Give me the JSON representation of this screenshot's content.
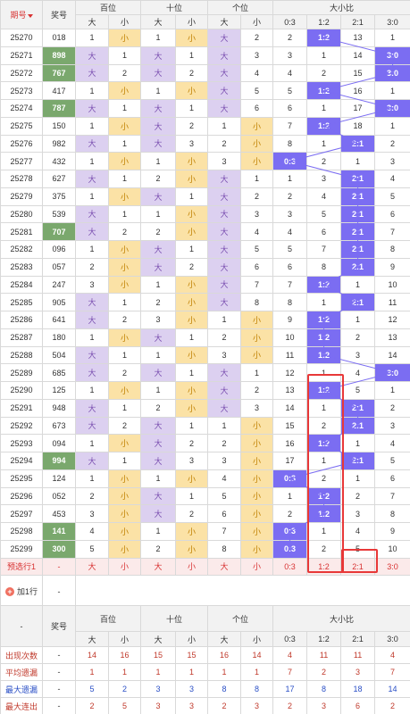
{
  "header": {
    "issue": "期号",
    "prize": "奖号",
    "groups": [
      "百位",
      "十位",
      "个位",
      "大小比"
    ],
    "bs": [
      "大",
      "小"
    ],
    "ratios": [
      "0:3",
      "1:2",
      "2:1",
      "3:0"
    ]
  },
  "rows": [
    {
      "issue": "25270",
      "prize": "018",
      "hl": false,
      "pos": [
        [
          "1",
          "小"
        ],
        [
          "1",
          "小"
        ],
        [
          "大",
          "2"
        ]
      ],
      "ratio": [
        "2",
        "1:2",
        "13",
        "1"
      ],
      "hit": 1
    },
    {
      "issue": "25271",
      "prize": "898",
      "hl": true,
      "pos": [
        [
          "大",
          "1"
        ],
        [
          "大",
          "1"
        ],
        [
          "大",
          "3"
        ]
      ],
      "ratio": [
        "3",
        "1",
        "14",
        "3:0"
      ],
      "hit": 3
    },
    {
      "issue": "25272",
      "prize": "767",
      "hl": true,
      "pos": [
        [
          "大",
          "2"
        ],
        [
          "大",
          "2"
        ],
        [
          "大",
          "4"
        ]
      ],
      "ratio": [
        "4",
        "2",
        "15",
        "3:0"
      ],
      "hit": 3
    },
    {
      "issue": "25273",
      "prize": "417",
      "hl": false,
      "pos": [
        [
          "1",
          "小"
        ],
        [
          "1",
          "小"
        ],
        [
          "大",
          "5"
        ]
      ],
      "ratio": [
        "5",
        "1:2",
        "16",
        "1"
      ],
      "hit": 1
    },
    {
      "issue": "25274",
      "prize": "787",
      "hl": true,
      "pos": [
        [
          "大",
          "1"
        ],
        [
          "大",
          "1"
        ],
        [
          "大",
          "6"
        ]
      ],
      "ratio": [
        "6",
        "1",
        "17",
        "3:0"
      ],
      "hit": 3
    },
    {
      "issue": "25275",
      "prize": "150",
      "hl": false,
      "pos": [
        [
          "1",
          "小"
        ],
        [
          "大",
          "2"
        ],
        [
          "1",
          "小"
        ]
      ],
      "ratio": [
        "7",
        "1:2",
        "18",
        "1"
      ],
      "hit": 1
    },
    {
      "issue": "25276",
      "prize": "982",
      "hl": false,
      "pos": [
        [
          "大",
          "1"
        ],
        [
          "大",
          "3"
        ],
        [
          "2",
          "小"
        ]
      ],
      "ratio": [
        "8",
        "1",
        "2:1",
        "2"
      ],
      "hit": 2
    },
    {
      "issue": "25277",
      "prize": "432",
      "hl": false,
      "pos": [
        [
          "1",
          "小"
        ],
        [
          "1",
          "小"
        ],
        [
          "3",
          "小"
        ]
      ],
      "ratio": [
        "0:3",
        "2",
        "1",
        "3"
      ],
      "hit": 0
    },
    {
      "issue": "25278",
      "prize": "627",
      "hl": false,
      "pos": [
        [
          "大",
          "1"
        ],
        [
          "2",
          "小"
        ],
        [
          "大",
          "1"
        ]
      ],
      "ratio": [
        "1",
        "3",
        "2:1",
        "4"
      ],
      "hit": 2
    },
    {
      "issue": "25279",
      "prize": "375",
      "hl": false,
      "pos": [
        [
          "1",
          "小"
        ],
        [
          "大",
          "1"
        ],
        [
          "大",
          "2"
        ]
      ],
      "ratio": [
        "2",
        "4",
        "2:1",
        "5"
      ],
      "hit": 2
    },
    {
      "issue": "25280",
      "prize": "539",
      "hl": false,
      "pos": [
        [
          "大",
          "1"
        ],
        [
          "1",
          "小"
        ],
        [
          "大",
          "3"
        ]
      ],
      "ratio": [
        "3",
        "5",
        "2:1",
        "6"
      ],
      "hit": 2
    },
    {
      "issue": "25281",
      "prize": "707",
      "hl": true,
      "pos": [
        [
          "大",
          "2"
        ],
        [
          "2",
          "小"
        ],
        [
          "大",
          "4"
        ]
      ],
      "ratio": [
        "4",
        "6",
        "2:1",
        "7"
      ],
      "hit": 2
    },
    {
      "issue": "25282",
      "prize": "096",
      "hl": false,
      "pos": [
        [
          "1",
          "小"
        ],
        [
          "大",
          "1"
        ],
        [
          "大",
          "5"
        ]
      ],
      "ratio": [
        "5",
        "7",
        "2:1",
        "8"
      ],
      "hit": 2
    },
    {
      "issue": "25283",
      "prize": "057",
      "hl": false,
      "pos": [
        [
          "2",
          "小"
        ],
        [
          "大",
          "2"
        ],
        [
          "大",
          "6"
        ]
      ],
      "ratio": [
        "6",
        "8",
        "2:1",
        "9"
      ],
      "hit": 2
    },
    {
      "issue": "25284",
      "prize": "247",
      "hl": false,
      "pos": [
        [
          "3",
          "小"
        ],
        [
          "1",
          "小"
        ],
        [
          "大",
          "7"
        ]
      ],
      "ratio": [
        "7",
        "1:2",
        "1",
        "10"
      ],
      "hit": 1
    },
    {
      "issue": "25285",
      "prize": "905",
      "hl": false,
      "pos": [
        [
          "大",
          "1"
        ],
        [
          "2",
          "小"
        ],
        [
          "大",
          "8"
        ]
      ],
      "ratio": [
        "8",
        "1",
        "2:1",
        "11"
      ],
      "hit": 2
    },
    {
      "issue": "25286",
      "prize": "641",
      "hl": false,
      "pos": [
        [
          "大",
          "2"
        ],
        [
          "3",
          "小"
        ],
        [
          "1",
          "小"
        ]
      ],
      "ratio": [
        "9",
        "1:2",
        "1",
        "12"
      ],
      "hit": 1
    },
    {
      "issue": "25287",
      "prize": "180",
      "hl": false,
      "pos": [
        [
          "1",
          "小"
        ],
        [
          "大",
          "1"
        ],
        [
          "2",
          "小"
        ]
      ],
      "ratio": [
        "10",
        "1:2",
        "2",
        "13"
      ],
      "hit": 1
    },
    {
      "issue": "25288",
      "prize": "504",
      "hl": false,
      "pos": [
        [
          "大",
          "1"
        ],
        [
          "1",
          "小"
        ],
        [
          "3",
          "小"
        ]
      ],
      "ratio": [
        "11",
        "1:2",
        "3",
        "14"
      ],
      "hit": 1
    },
    {
      "issue": "25289",
      "prize": "685",
      "hl": false,
      "pos": [
        [
          "大",
          "2"
        ],
        [
          "大",
          "1"
        ],
        [
          "大",
          "1"
        ]
      ],
      "ratio": [
        "12",
        "1",
        "4",
        "3:0"
      ],
      "hit": 3
    },
    {
      "issue": "25290",
      "prize": "125",
      "hl": false,
      "pos": [
        [
          "1",
          "小"
        ],
        [
          "1",
          "小"
        ],
        [
          "大",
          "2"
        ]
      ],
      "ratio": [
        "13",
        "1:2",
        "5",
        "1"
      ],
      "hit": 1
    },
    {
      "issue": "25291",
      "prize": "948",
      "hl": false,
      "pos": [
        [
          "大",
          "1"
        ],
        [
          "2",
          "小"
        ],
        [
          "大",
          "3"
        ]
      ],
      "ratio": [
        "14",
        "1",
        "2:1",
        "2"
      ],
      "hit": 2
    },
    {
      "issue": "25292",
      "prize": "673",
      "hl": false,
      "pos": [
        [
          "大",
          "2"
        ],
        [
          "大",
          "1"
        ],
        [
          "1",
          "小"
        ]
      ],
      "ratio": [
        "15",
        "2",
        "2:1",
        "3"
      ],
      "hit": 2
    },
    {
      "issue": "25293",
      "prize": "094",
      "hl": false,
      "pos": [
        [
          "1",
          "小"
        ],
        [
          "大",
          "2"
        ],
        [
          "2",
          "小"
        ]
      ],
      "ratio": [
        "16",
        "1:2",
        "1",
        "4"
      ],
      "hit": 1
    },
    {
      "issue": "25294",
      "prize": "994",
      "hl": true,
      "pos": [
        [
          "大",
          "1"
        ],
        [
          "大",
          "3"
        ],
        [
          "3",
          "小"
        ]
      ],
      "ratio": [
        "17",
        "1",
        "2:1",
        "5"
      ],
      "hit": 2
    },
    {
      "issue": "25295",
      "prize": "124",
      "hl": false,
      "pos": [
        [
          "1",
          "小"
        ],
        [
          "1",
          "小"
        ],
        [
          "4",
          "小"
        ]
      ],
      "ratio": [
        "0:3",
        "2",
        "1",
        "6"
      ],
      "hit": 0
    },
    {
      "issue": "25296",
      "prize": "052",
      "hl": false,
      "pos": [
        [
          "2",
          "小"
        ],
        [
          "大",
          "1"
        ],
        [
          "5",
          "小"
        ]
      ],
      "ratio": [
        "1",
        "1:2",
        "2",
        "7"
      ],
      "hit": 1
    },
    {
      "issue": "25297",
      "prize": "453",
      "hl": false,
      "pos": [
        [
          "3",
          "小"
        ],
        [
          "大",
          "2"
        ],
        [
          "6",
          "小"
        ]
      ],
      "ratio": [
        "2",
        "1:2",
        "3",
        "8"
      ],
      "hit": 1
    },
    {
      "issue": "25298",
      "prize": "141",
      "hl": true,
      "pos": [
        [
          "4",
          "小"
        ],
        [
          "1",
          "小"
        ],
        [
          "7",
          "小"
        ]
      ],
      "ratio": [
        "0:3",
        "1",
        "4",
        "9"
      ],
      "hit": 0
    },
    {
      "issue": "25299",
      "prize": "300",
      "hl": true,
      "pos": [
        [
          "5",
          "小"
        ],
        [
          "2",
          "小"
        ],
        [
          "8",
          "小"
        ]
      ],
      "ratio": [
        "0:3",
        "2",
        "5",
        "10"
      ],
      "hit": 0
    }
  ],
  "predict": {
    "label": "预选行1",
    "prize": "-",
    "cells": [
      "大",
      "小",
      "大",
      "小",
      "大",
      "小",
      "0:3",
      "1:2",
      "2:1",
      "3:0"
    ]
  },
  "add_row": {
    "label": "加1行",
    "dash": "-"
  },
  "stats": {
    "corner": "-",
    "prize": "奖号",
    "groups": [
      "百位",
      "十位",
      "个位",
      "大小比"
    ],
    "bs": [
      "大",
      "小"
    ],
    "ratios": [
      "0:3",
      "1:2",
      "2:1",
      "3:0"
    ],
    "rows": [
      {
        "label": "出现次数",
        "cls": "red",
        "prize": "-",
        "vals": [
          "14",
          "16",
          "15",
          "15",
          "16",
          "14",
          "4",
          "11",
          "11",
          "4"
        ]
      },
      {
        "label": "平均遗漏",
        "cls": "red",
        "prize": "-",
        "vals": [
          "1",
          "1",
          "1",
          "1",
          "1",
          "1",
          "7",
          "2",
          "3",
          "7"
        ]
      },
      {
        "label": "最大遗漏",
        "cls": "blue",
        "prize": "-",
        "vals": [
          "5",
          "2",
          "3",
          "3",
          "8",
          "8",
          "17",
          "8",
          "18",
          "14"
        ]
      },
      {
        "label": "最大连出",
        "cls": "red",
        "prize": "-",
        "vals": [
          "2",
          "5",
          "3",
          "3",
          "2",
          "3",
          "2",
          "3",
          "6",
          "2"
        ]
      }
    ]
  },
  "colors": {
    "hit": "#7b6df2",
    "big": "#dcd0f0",
    "small": "#fbe2a6",
    "prize_hl": "#7aa86d",
    "box": "#e83838"
  }
}
